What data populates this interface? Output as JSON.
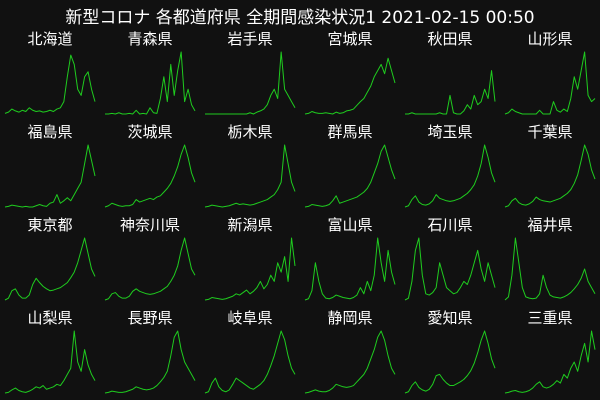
{
  "title": "新型コロナ 各都道府県 全期間感染状況1  2021-02-15 00:50",
  "colors": {
    "background": "#111111",
    "line": "#1fcc1f",
    "text": "#ffffff"
  },
  "chart_data": [
    {
      "type": "line",
      "title": "北海道",
      "xlabel": "",
      "ylabel": "",
      "grid": false,
      "ylim": [
        0,
        100
      ],
      "values": [
        1,
        3,
        8,
        5,
        3,
        6,
        4,
        10,
        6,
        4,
        5,
        3,
        4,
        6,
        4,
        8,
        10,
        20,
        60,
        95,
        80,
        40,
        30,
        60,
        68,
        40,
        20
      ]
    },
    {
      "type": "line",
      "title": "青森県",
      "xlabel": "",
      "ylabel": "",
      "grid": false,
      "ylim": [
        0,
        100
      ],
      "values": [
        0,
        0,
        1,
        0,
        2,
        0,
        0,
        1,
        0,
        6,
        0,
        1,
        0,
        10,
        2,
        1,
        25,
        60,
        20,
        80,
        30,
        70,
        100,
        20,
        40,
        15,
        5
      ]
    },
    {
      "type": "line",
      "title": "岩手県",
      "xlabel": "",
      "ylabel": "",
      "grid": false,
      "ylim": [
        0,
        100
      ],
      "values": [
        0,
        0,
        0,
        0,
        0,
        0,
        0,
        0,
        0,
        0,
        0,
        0,
        0,
        2,
        0,
        3,
        5,
        8,
        15,
        30,
        40,
        25,
        100,
        40,
        30,
        20,
        10
      ]
    },
    {
      "type": "line",
      "title": "宮城県",
      "xlabel": "",
      "ylabel": "",
      "grid": false,
      "ylim": [
        0,
        100
      ],
      "values": [
        0,
        1,
        4,
        2,
        1,
        1,
        2,
        1,
        0,
        3,
        1,
        2,
        5,
        6,
        8,
        14,
        20,
        25,
        35,
        45,
        60,
        70,
        80,
        65,
        90,
        70,
        50
      ]
    },
    {
      "type": "line",
      "title": "秋田県",
      "xlabel": "",
      "ylabel": "",
      "grid": false,
      "ylim": [
        0,
        100
      ],
      "values": [
        0,
        0,
        2,
        0,
        0,
        0,
        0,
        0,
        0,
        0,
        2,
        0,
        0,
        30,
        2,
        0,
        0,
        5,
        15,
        8,
        30,
        15,
        20,
        40,
        25,
        70,
        20
      ]
    },
    {
      "type": "line",
      "title": "山形県",
      "xlabel": "",
      "ylabel": "",
      "grid": false,
      "ylim": [
        0,
        100
      ],
      "values": [
        0,
        2,
        8,
        4,
        2,
        0,
        0,
        0,
        0,
        0,
        6,
        0,
        0,
        0,
        20,
        6,
        3,
        8,
        4,
        25,
        60,
        40,
        70,
        100,
        30,
        20,
        25
      ]
    },
    {
      "type": "line",
      "title": "福島県",
      "xlabel": "",
      "ylabel": "",
      "grid": false,
      "ylim": [
        0,
        100
      ],
      "values": [
        0,
        1,
        3,
        2,
        1,
        0,
        1,
        0,
        0,
        2,
        4,
        2,
        1,
        6,
        8,
        20,
        6,
        10,
        15,
        10,
        20,
        30,
        40,
        70,
        100,
        75,
        50
      ]
    },
    {
      "type": "line",
      "title": "茨城県",
      "xlabel": "",
      "ylabel": "",
      "grid": false,
      "ylim": [
        0,
        100
      ],
      "values": [
        0,
        2,
        6,
        4,
        2,
        1,
        2,
        2,
        4,
        12,
        8,
        10,
        12,
        14,
        12,
        16,
        18,
        24,
        30,
        38,
        50,
        65,
        85,
        100,
        80,
        55,
        40
      ]
    },
    {
      "type": "line",
      "title": "栃木県",
      "xlabel": "",
      "ylabel": "",
      "grid": false,
      "ylim": [
        0,
        100
      ],
      "values": [
        0,
        1,
        3,
        2,
        1,
        0,
        1,
        2,
        4,
        6,
        4,
        5,
        4,
        3,
        4,
        6,
        8,
        10,
        12,
        16,
        20,
        28,
        40,
        100,
        70,
        40,
        25
      ]
    },
    {
      "type": "line",
      "title": "群馬県",
      "xlabel": "",
      "ylabel": "",
      "grid": false,
      "ylim": [
        0,
        100
      ],
      "values": [
        0,
        1,
        4,
        3,
        2,
        1,
        2,
        4,
        10,
        18,
        6,
        8,
        10,
        12,
        14,
        16,
        20,
        24,
        30,
        40,
        55,
        70,
        90,
        100,
        80,
        60,
        45
      ]
    },
    {
      "type": "line",
      "title": "埼玉県",
      "xlabel": "",
      "ylabel": "",
      "grid": false,
      "ylim": [
        0,
        100
      ],
      "values": [
        0,
        2,
        12,
        18,
        8,
        4,
        3,
        5,
        10,
        20,
        14,
        12,
        10,
        9,
        10,
        12,
        14,
        18,
        22,
        28,
        36,
        50,
        70,
        100,
        80,
        55,
        40
      ]
    },
    {
      "type": "line",
      "title": "千葉県",
      "xlabel": "",
      "ylabel": "",
      "grid": false,
      "ylim": [
        0,
        100
      ],
      "values": [
        0,
        2,
        10,
        14,
        7,
        4,
        3,
        5,
        9,
        16,
        12,
        10,
        9,
        8,
        10,
        12,
        14,
        18,
        22,
        28,
        38,
        52,
        75,
        100,
        85,
        60,
        45
      ]
    },
    {
      "type": "line",
      "title": "東京都",
      "xlabel": "",
      "ylabel": "",
      "grid": false,
      "ylim": [
        0,
        100
      ],
      "values": [
        0,
        3,
        15,
        18,
        8,
        3,
        3,
        8,
        25,
        35,
        28,
        22,
        18,
        15,
        16,
        18,
        20,
        24,
        28,
        36,
        45,
        60,
        80,
        100,
        75,
        50,
        38
      ]
    },
    {
      "type": "line",
      "title": "神奈川県",
      "xlabel": "",
      "ylabel": "",
      "grid": false,
      "ylim": [
        0,
        100
      ],
      "values": [
        0,
        2,
        10,
        12,
        6,
        3,
        3,
        6,
        14,
        18,
        14,
        12,
        10,
        9,
        10,
        12,
        14,
        18,
        22,
        30,
        40,
        55,
        80,
        100,
        75,
        50,
        40
      ]
    },
    {
      "type": "line",
      "title": "新潟県",
      "xlabel": "",
      "ylabel": "",
      "grid": false,
      "ylim": [
        0,
        100
      ],
      "values": [
        0,
        1,
        4,
        3,
        2,
        1,
        2,
        4,
        6,
        10,
        8,
        12,
        16,
        10,
        14,
        20,
        30,
        18,
        25,
        40,
        30,
        60,
        45,
        70,
        30,
        100,
        55
      ]
    },
    {
      "type": "line",
      "title": "富山県",
      "xlabel": "",
      "ylabel": "",
      "grid": false,
      "ylim": [
        0,
        100
      ],
      "values": [
        0,
        2,
        15,
        60,
        30,
        10,
        3,
        2,
        4,
        8,
        6,
        4,
        3,
        2,
        4,
        8,
        20,
        10,
        30,
        15,
        40,
        100,
        60,
        30,
        80,
        45,
        25
      ]
    },
    {
      "type": "line",
      "title": "石川県",
      "xlabel": "",
      "ylabel": "",
      "grid": false,
      "ylim": [
        0,
        100
      ],
      "values": [
        0,
        3,
        30,
        80,
        100,
        40,
        10,
        8,
        12,
        20,
        60,
        40,
        20,
        15,
        10,
        12,
        20,
        30,
        25,
        40,
        60,
        80,
        50,
        30,
        60,
        40,
        20
      ]
    },
    {
      "type": "line",
      "title": "福井県",
      "xlabel": "",
      "ylabel": "",
      "grid": false,
      "ylim": [
        0,
        100
      ],
      "values": [
        0,
        5,
        40,
        100,
        60,
        20,
        5,
        3,
        2,
        3,
        10,
        40,
        20,
        8,
        5,
        4,
        3,
        5,
        8,
        12,
        18,
        25,
        35,
        50,
        30,
        20,
        10
      ]
    },
    {
      "type": "line",
      "title": "山梨県",
      "xlabel": "",
      "ylabel": "",
      "grid": false,
      "ylim": [
        0,
        100
      ],
      "values": [
        0,
        1,
        5,
        8,
        4,
        2,
        1,
        3,
        6,
        10,
        8,
        12,
        6,
        8,
        10,
        14,
        12,
        20,
        30,
        40,
        100,
        50,
        35,
        70,
        45,
        30,
        20
      ]
    },
    {
      "type": "line",
      "title": "長野県",
      "xlabel": "",
      "ylabel": "",
      "grid": false,
      "ylim": [
        0,
        100
      ],
      "values": [
        0,
        1,
        3,
        2,
        1,
        1,
        2,
        4,
        6,
        10,
        8,
        6,
        5,
        6,
        8,
        12,
        18,
        25,
        35,
        60,
        90,
        100,
        70,
        50,
        40,
        30,
        20
      ]
    },
    {
      "type": "line",
      "title": "岐阜県",
      "xlabel": "",
      "ylabel": "",
      "grid": false,
      "ylim": [
        0,
        100
      ],
      "values": [
        0,
        2,
        16,
        24,
        10,
        4,
        2,
        5,
        14,
        24,
        20,
        16,
        12,
        8,
        6,
        10,
        14,
        20,
        30,
        44,
        60,
        80,
        100,
        86,
        60,
        40,
        30
      ]
    },
    {
      "type": "line",
      "title": "静岡県",
      "xlabel": "",
      "ylabel": "",
      "grid": false,
      "ylim": [
        0,
        100
      ],
      "values": [
        0,
        1,
        3,
        5,
        3,
        2,
        2,
        4,
        8,
        14,
        12,
        10,
        9,
        10,
        12,
        18,
        24,
        30,
        40,
        55,
        70,
        90,
        100,
        85,
        60,
        40,
        30
      ]
    },
    {
      "type": "line",
      "title": "愛知県",
      "xlabel": "",
      "ylabel": "",
      "grid": false,
      "ylim": [
        0,
        100
      ],
      "values": [
        0,
        2,
        12,
        18,
        9,
        5,
        3,
        6,
        14,
        28,
        30,
        22,
        16,
        12,
        12,
        15,
        18,
        22,
        28,
        36,
        48,
        65,
        85,
        100,
        80,
        55,
        40
      ]
    },
    {
      "type": "line",
      "title": "三重県",
      "xlabel": "",
      "ylabel": "",
      "grid": false,
      "ylim": [
        0,
        100
      ],
      "values": [
        0,
        1,
        3,
        4,
        2,
        1,
        2,
        4,
        8,
        14,
        18,
        10,
        8,
        10,
        14,
        20,
        16,
        30,
        24,
        40,
        50,
        35,
        60,
        80,
        50,
        100,
        70
      ]
    }
  ]
}
